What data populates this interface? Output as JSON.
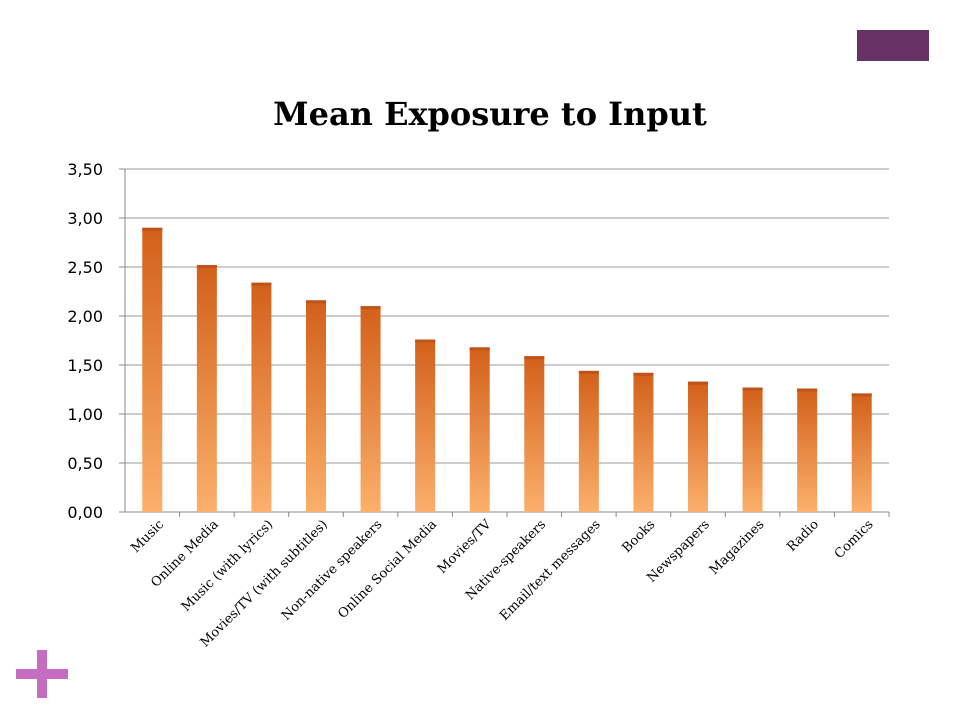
{
  "slide": {
    "accent_color": "#673366",
    "plus_color": "#c56dc0",
    "plus_icon": "plus-icon"
  },
  "chart_data": {
    "type": "bar",
    "title": "Mean Exposure to Input",
    "xlabel": "",
    "ylabel": "",
    "ylim": [
      0,
      3.5
    ],
    "yticks": [
      "0,00",
      "0,50",
      "1,00",
      "1,50",
      "2,00",
      "2,50",
      "3,00",
      "3,50"
    ],
    "grid": true,
    "legend": "none",
    "bar_color_top": "#d2601a",
    "bar_color_bottom": "#fbb06b",
    "categories": [
      "Music",
      "Online Media",
      "Music (with lyrics)",
      "Movies/TV (with subtitles)",
      "Non-native speakers",
      "Online Social Media",
      "Movies/TV",
      "Native-speakers",
      "Email/text messages",
      "Books",
      "Newspapers",
      "Magazines",
      "Radio",
      "Comics"
    ],
    "values": [
      2.9,
      2.52,
      2.34,
      2.16,
      2.1,
      1.76,
      1.68,
      1.59,
      1.44,
      1.42,
      1.33,
      1.27,
      1.26,
      1.21
    ]
  }
}
